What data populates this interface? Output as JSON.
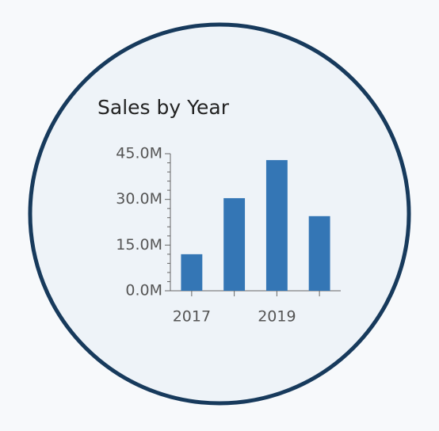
{
  "chart_data": {
    "type": "bar",
    "title": "Sales by Year",
    "categories": [
      "2017",
      null,
      "2019",
      null
    ],
    "values": [
      12,
      30.4,
      42.9,
      24.5
    ],
    "color": "#3476b5",
    "ylim": [
      0,
      45
    ],
    "yticks": [
      {
        "value": 0,
        "label": "0.0M"
      },
      {
        "value": 15,
        "label": "15.0M"
      },
      {
        "value": 30,
        "label": "30.0M"
      },
      {
        "value": 45,
        "label": "45.0M"
      }
    ],
    "minor_yticks": [
      3,
      6,
      9,
      12,
      18,
      21,
      24,
      27,
      33,
      36,
      39,
      42
    ]
  }
}
